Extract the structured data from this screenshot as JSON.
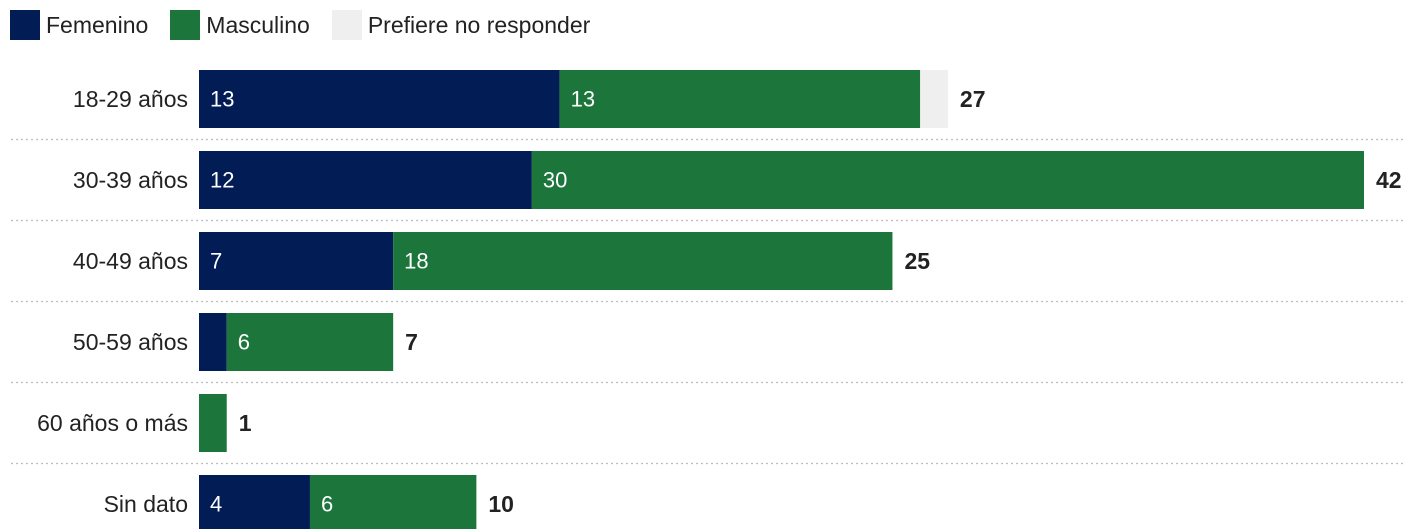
{
  "legend": [
    {
      "label": "Femenino",
      "color": "#021c55"
    },
    {
      "label": "Masculino",
      "color": "#1c763c"
    },
    {
      "label": "Prefiere no responder",
      "color": "#efefef"
    }
  ],
  "chart_data": {
    "type": "bar",
    "orientation": "horizontal",
    "stacked": true,
    "title": "",
    "xlabel": "",
    "ylabel": "",
    "grid": false,
    "legend_position": "top-left",
    "categories": [
      "18-29 años",
      "30-39 años",
      "40-49 años",
      "50-59 años",
      "60 años o más",
      "Sin dato"
    ],
    "series": [
      {
        "name": "Femenino",
        "color": "#021c55",
        "values": [
          13,
          12,
          7,
          1,
          0,
          4
        ],
        "labels": [
          "13",
          "12",
          "7",
          "",
          "",
          "4"
        ]
      },
      {
        "name": "Masculino",
        "color": "#1c763c",
        "values": [
          13,
          30,
          18,
          6,
          1,
          6
        ],
        "labels": [
          "13",
          "30",
          "18",
          "6",
          "",
          "6"
        ]
      },
      {
        "name": "Prefiere no responder",
        "color": "#efefef",
        "values": [
          1,
          0,
          0,
          0,
          0,
          0
        ],
        "labels": [
          "",
          "",
          "",
          "",
          "",
          ""
        ]
      }
    ],
    "totals": [
      "27",
      "42",
      "25",
      "7",
      "1",
      "10"
    ],
    "xlim": [
      0,
      42
    ]
  }
}
